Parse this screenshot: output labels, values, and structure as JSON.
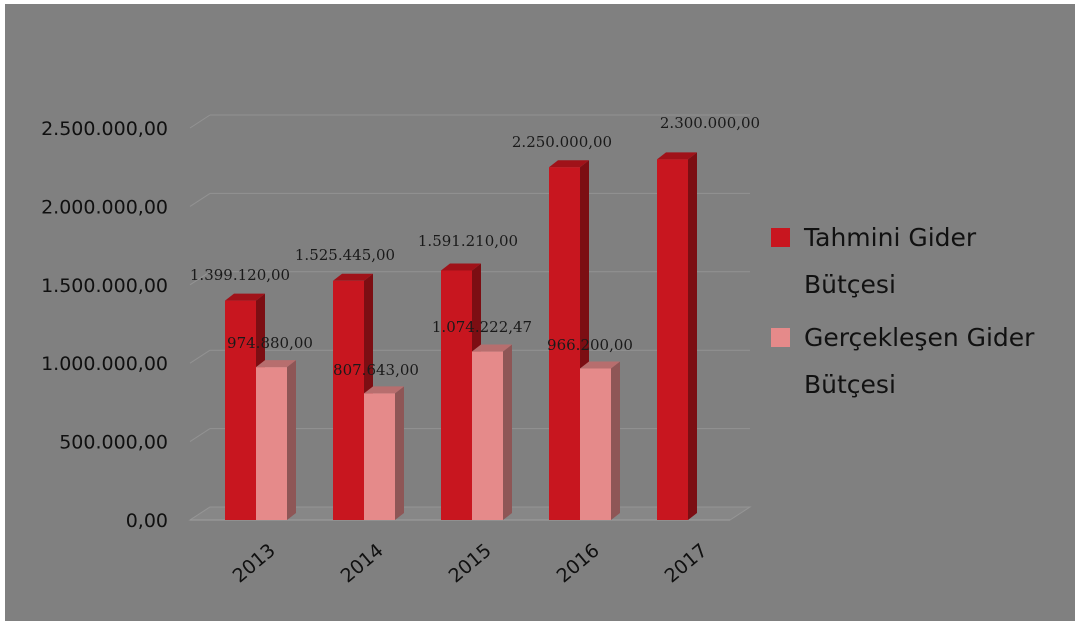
{
  "chart_data": {
    "type": "bar",
    "categories": [
      "2013",
      "2014",
      "2015",
      "2016",
      "2017"
    ],
    "series": [
      {
        "name": "Tahmini Gider Bütçesi",
        "legend_lines": [
          "Tahmini Gider",
          "Bütçesi"
        ],
        "color": "#c8161f",
        "values": [
          1399120.0,
          1525445.0,
          1591210.0,
          2250000.0,
          2300000.0
        ],
        "labels": [
          "1.399.120,00",
          "1.525.445,00",
          "1.591.210,00",
          "2.250.000,00",
          "2.300.000,00"
        ]
      },
      {
        "name": "Gerçekleşen Gider Bütçesi",
        "legend_lines": [
          "Gerçekleşen Gider",
          "Bütçesi"
        ],
        "color": "#e58a8a",
        "values": [
          974880.0,
          807643.0,
          1074222.47,
          966200.0,
          null
        ],
        "labels": [
          "974.880,00",
          "807.643,00",
          "1.074.222,47",
          "966.200,00",
          null
        ]
      }
    ],
    "yticks": [
      0,
      500000,
      1000000,
      1500000,
      2000000,
      2500000
    ],
    "ytick_labels": [
      "0,00",
      "500.000,00",
      "1.000.000,00",
      "1.500.000,00",
      "2.000.000,00",
      "2.500.000,00"
    ],
    "ylim": [
      0,
      2500000
    ],
    "grid": true,
    "three_d": true,
    "legend_position": "right",
    "background": "#808080",
    "title": "",
    "xlabel": "",
    "ylabel": ""
  }
}
